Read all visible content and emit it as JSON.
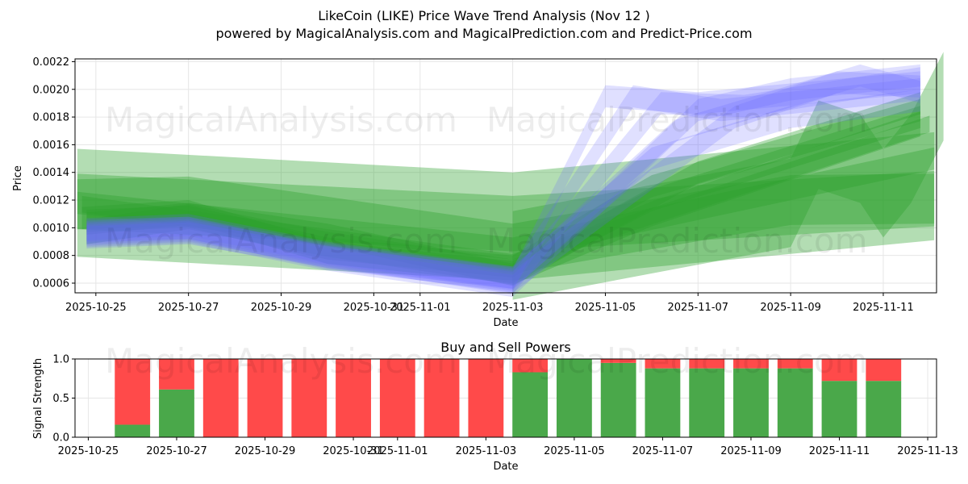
{
  "title_line1": "LikeCoin (LIKE) Price Wave Trend Analysis (Nov 12 )",
  "title_line2": "powered by MagicalAnalysis.com and MagicalPrediction.com and Predict-Price.com",
  "watermarks": [
    "MagicalAnalysis.com",
    "MagicalPrediction.com"
  ],
  "colors": {
    "green": "#2ca02c",
    "blue": "#6666ff",
    "buy": "#4aa84a",
    "sell": "#ff4a4a",
    "grid": "#e6e6e6"
  },
  "chart_data": [
    {
      "type": "area",
      "title": "LikeCoin (LIKE) Price Wave Trend Analysis (Nov 12 )",
      "xlabel": "Date",
      "ylabel": "Price",
      "ylim": [
        0.00053,
        0.00222
      ],
      "x_range_days": [
        -0.45,
        18.15
      ],
      "x_origin": "2025-10-25",
      "x_ticks": [
        {
          "day": 0,
          "label": "2025-10-25"
        },
        {
          "day": 2,
          "label": "2025-10-27"
        },
        {
          "day": 4,
          "label": "2025-10-29"
        },
        {
          "day": 6,
          "label": "2025-10-31"
        },
        {
          "day": 7,
          "label": "2025-11-01"
        },
        {
          "day": 9,
          "label": "2025-11-03"
        },
        {
          "day": 11,
          "label": "2025-11-05"
        },
        {
          "day": 13,
          "label": "2025-11-07"
        },
        {
          "day": 15,
          "label": "2025-11-09"
        },
        {
          "day": 17,
          "label": "2025-11-11"
        }
      ],
      "y_ticks": [
        0.0006,
        0.0008,
        0.001,
        0.0012,
        0.0014,
        0.0016,
        0.0018,
        0.002,
        0.0022
      ],
      "y_tick_labels": [
        "0.0006",
        "0.0008",
        "0.0010",
        "0.0012",
        "0.0014",
        "0.0016",
        "0.0018",
        "0.0020",
        "0.0022"
      ],
      "green_bands": [
        {
          "x": [
            -0.4,
            9,
            18.1
          ],
          "y": [
            0.00118,
            0.00101,
            0.0013
          ],
          "half_width": 0.00039
        },
        {
          "x": [
            -0.4,
            9,
            18.1
          ],
          "y": [
            0.00119,
            0.00103,
            0.00121
          ],
          "half_width": 0.0002
        },
        {
          "x": [
            -0.4,
            2,
            9,
            15,
            18.1
          ],
          "y": [
            0.00117,
            0.00119,
            0.00085,
            0.0012,
            0.00121
          ],
          "half_width": 0.00018
        },
        {
          "x": [
            -0.4,
            9,
            18.1
          ],
          "y": [
            0.00118,
            0.00085,
            0.0015
          ],
          "half_width": 8e-05
        },
        {
          "x": [
            -0.3,
            9,
            18
          ],
          "y": [
            0.00117,
            0.00075,
            0.00175
          ],
          "half_width": 6e-05
        },
        {
          "x": [
            9,
            15,
            15.6,
            16.5,
            17,
            17.6,
            18.3
          ],
          "y": [
            0.0008,
            0.00118,
            0.0016,
            0.0015,
            0.00125,
            0.0015,
            0.00195
          ],
          "half_width": 0.00032
        },
        {
          "x": [
            -0.3,
            2,
            5,
            9,
            12,
            17.8
          ],
          "y": [
            0.00107,
            0.00112,
            0.00082,
            0.00068,
            0.0012,
            0.0018
          ],
          "half_width": 8e-05
        },
        {
          "x": [
            -0.2,
            2,
            5,
            9,
            12,
            17.8
          ],
          "y": [
            0.00105,
            0.00108,
            0.00085,
            0.00072,
            0.0013,
            0.00185
          ],
          "half_width": 8e-05
        },
        {
          "x": [
            -0.2,
            2,
            5,
            9,
            13,
            17.8
          ],
          "y": [
            0.00103,
            0.0011,
            0.00095,
            0.00066,
            0.0014,
            0.0019
          ],
          "half_width": 8e-05
        },
        {
          "x": [
            -0.2,
            2,
            5,
            9,
            12,
            17.8
          ],
          "y": [
            0.00097,
            0.00108,
            0.00088,
            0.00068,
            0.0011,
            0.00175
          ],
          "half_width": 9e-05
        }
      ],
      "blue_bands": [
        {
          "x": [
            -0.2,
            2,
            5,
            9,
            11,
            13,
            17.8
          ],
          "y": [
            0.00097,
            0.001,
            0.00078,
            0.00062,
            0.00195,
            0.0019,
            0.00205
          ],
          "half_width": 8e-05
        },
        {
          "x": [
            -0.2,
            2,
            5,
            9,
            11.6,
            13.5,
            17.8
          ],
          "y": [
            0.00099,
            0.00102,
            0.00082,
            0.00064,
            0.00195,
            0.00185,
            0.002
          ],
          "half_width": 8e-05
        },
        {
          "x": [
            -0.2,
            2,
            5,
            9,
            12.2,
            14,
            17.8
          ],
          "y": [
            0.00095,
            0.00098,
            0.0008,
            0.0006,
            0.0019,
            0.00188,
            0.00208
          ],
          "half_width": 8e-05
        },
        {
          "x": [
            -0.2,
            2,
            5,
            9,
            13,
            15,
            17.8
          ],
          "y": [
            0.00094,
            0.00097,
            0.00077,
            0.00058,
            0.00185,
            0.002,
            0.0021
          ],
          "half_width": 8e-05
        },
        {
          "x": [
            -0.2,
            2,
            5,
            9,
            13.8,
            16,
            17.8
          ],
          "y": [
            0.00096,
            0.00099,
            0.00079,
            0.00061,
            0.0018,
            0.00205,
            0.00202
          ],
          "half_width": 8e-05
        },
        {
          "x": [
            -0.2,
            2,
            5,
            9,
            12.5,
            16.5,
            17.8
          ],
          "y": [
            0.00098,
            0.001,
            0.00081,
            0.00063,
            0.0017,
            0.0021,
            0.00198
          ],
          "half_width": 8e-05
        },
        {
          "x": [
            -0.2,
            2,
            5,
            9,
            12,
            15,
            17.8
          ],
          "y": [
            0.00093,
            0.00096,
            0.00079,
            0.00064,
            0.0015,
            0.0018,
            0.00192
          ],
          "half_width": 8e-05
        }
      ]
    },
    {
      "type": "bar",
      "title": "Buy and Sell Powers",
      "xlabel": "Date",
      "ylabel": "Signal Strength",
      "ylim": [
        0,
        1
      ],
      "x_range_days": [
        -0.3,
        19.2
      ],
      "x_origin": "2025-10-25",
      "x_ticks": [
        {
          "day": 0,
          "label": "2025-10-25"
        },
        {
          "day": 2,
          "label": "2025-10-27"
        },
        {
          "day": 4,
          "label": "2025-10-29"
        },
        {
          "day": 6,
          "label": "2025-10-31"
        },
        {
          "day": 7,
          "label": "2025-11-01"
        },
        {
          "day": 9,
          "label": "2025-11-03"
        },
        {
          "day": 11,
          "label": "2025-11-05"
        },
        {
          "day": 13,
          "label": "2025-11-07"
        },
        {
          "day": 15,
          "label": "2025-11-09"
        },
        {
          "day": 17,
          "label": "2025-11-11"
        },
        {
          "day": 19,
          "label": "2025-11-13"
        }
      ],
      "y_ticks": [
        0,
        0.5,
        1.0
      ],
      "y_tick_labels": [
        "0.0",
        "0.5",
        "1.0"
      ],
      "bar_days": [
        1,
        2,
        3,
        4,
        5,
        6,
        7,
        8,
        9,
        10,
        11,
        12,
        13,
        14,
        15,
        16,
        17,
        18
      ],
      "series": [
        {
          "name": "Buy",
          "values": [
            0.16,
            0.61,
            0,
            0,
            0,
            0,
            0,
            0,
            0,
            0.83,
            1.0,
            0.95,
            0.88,
            0.88,
            0.88,
            0.88,
            0.72,
            0.72
          ]
        },
        {
          "name": "Sell",
          "values": [
            0.84,
            0.39,
            1.0,
            1.0,
            1.0,
            1.0,
            1.0,
            1.0,
            1.0,
            0.17,
            0,
            0.05,
            0.12,
            0.12,
            0.12,
            0.12,
            0.28,
            0.28
          ]
        }
      ]
    }
  ]
}
